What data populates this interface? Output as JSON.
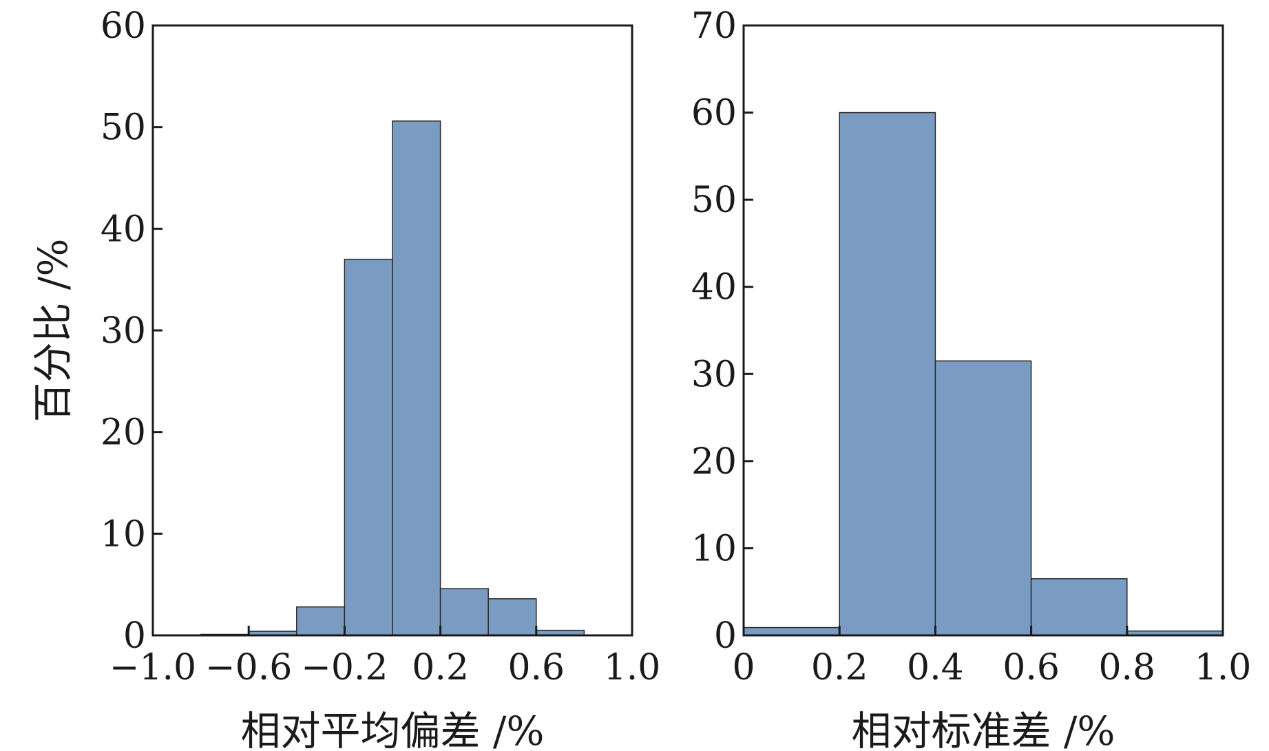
{
  "colors": {
    "bar": "#7a9cc2",
    "frame": "#1a1a1a",
    "background": "#ffffff"
  },
  "chart_data": [
    {
      "type": "bar",
      "xlabel": "相对平均偏差 /%",
      "ylabel": "百分比 /%",
      "xlim": [
        -1.0,
        1.0
      ],
      "ylim": [
        0,
        60
      ],
      "xticks": [
        -1.0,
        -0.6,
        -0.2,
        0.2,
        0.6,
        1.0
      ],
      "xtick_labels": [
        "−1.0",
        "−0.6",
        "−0.2",
        "0.2",
        "0.6",
        "1.0"
      ],
      "yticks": [
        0,
        10,
        20,
        30,
        40,
        50,
        60
      ],
      "ytick_labels": [
        "0",
        "10",
        "20",
        "30",
        "40",
        "50",
        "60"
      ],
      "bins": [
        {
          "x0": -0.8,
          "x1": -0.6,
          "value": 0.1
        },
        {
          "x0": -0.6,
          "x1": -0.4,
          "value": 0.4
        },
        {
          "x0": -0.4,
          "x1": -0.2,
          "value": 2.8
        },
        {
          "x0": -0.2,
          "x1": 0.0,
          "value": 37.0
        },
        {
          "x0": 0.0,
          "x1": 0.2,
          "value": 50.6
        },
        {
          "x0": 0.2,
          "x1": 0.4,
          "value": 4.6
        },
        {
          "x0": 0.4,
          "x1": 0.6,
          "value": 3.6
        },
        {
          "x0": 0.6,
          "x1": 0.8,
          "value": 0.5
        }
      ],
      "grid": false
    },
    {
      "type": "bar",
      "xlabel": "相对标准差 /%",
      "ylabel": "",
      "xlim": [
        0,
        1.0
      ],
      "ylim": [
        0,
        70
      ],
      "xticks": [
        0,
        0.2,
        0.4,
        0.6,
        0.8,
        1.0
      ],
      "xtick_labels": [
        "0",
        "0.2",
        "0.4",
        "0.6",
        "0.8",
        "1.0"
      ],
      "yticks": [
        0,
        10,
        20,
        30,
        40,
        50,
        60,
        70
      ],
      "ytick_labels": [
        "0",
        "10",
        "20",
        "30",
        "40",
        "50",
        "60",
        "70"
      ],
      "bins": [
        {
          "x0": 0.0,
          "x1": 0.2,
          "value": 0.9
        },
        {
          "x0": 0.2,
          "x1": 0.4,
          "value": 60.0
        },
        {
          "x0": 0.4,
          "x1": 0.6,
          "value": 31.5
        },
        {
          "x0": 0.6,
          "x1": 0.8,
          "value": 6.5
        },
        {
          "x0": 0.8,
          "x1": 1.0,
          "value": 0.5
        }
      ],
      "grid": false
    }
  ]
}
